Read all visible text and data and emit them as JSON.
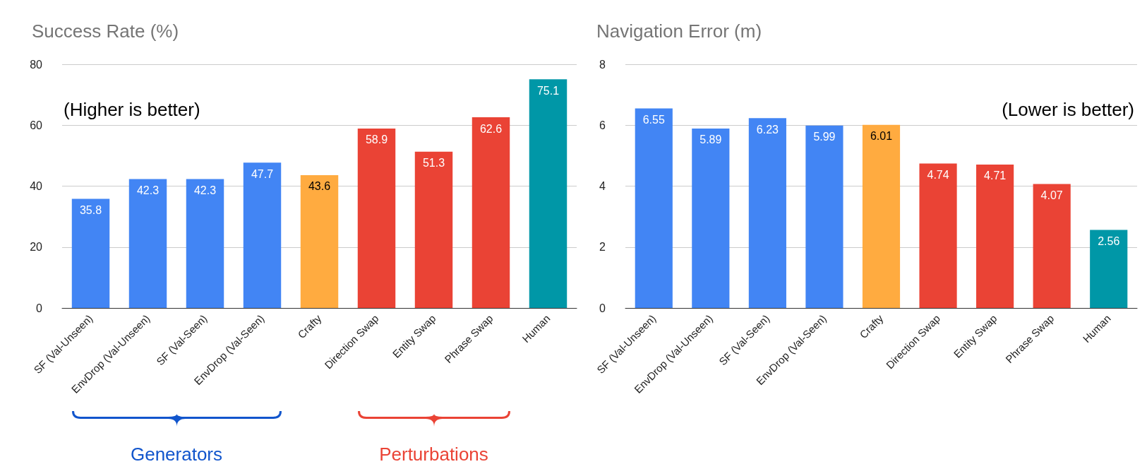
{
  "chart_data": [
    {
      "type": "bar",
      "title": "Success Rate (%)",
      "categories": [
        "SF (Val-Unseen)",
        "EnvDrop (Val-Unseen)",
        "SF (Val-Seen)",
        "EnvDrop (Val-Seen)",
        "Crafty",
        "Direction Swap",
        "Entity Swap",
        "Phrase Swap",
        "Human"
      ],
      "values": [
        35.8,
        42.3,
        42.3,
        47.7,
        43.6,
        58.9,
        51.3,
        62.6,
        75.1
      ],
      "colors": [
        "#4285f4",
        "#4285f4",
        "#4285f4",
        "#4285f4",
        "#ffab40",
        "#ea4335",
        "#ea4335",
        "#ea4335",
        "#0097a7"
      ],
      "ylim": [
        0,
        80
      ],
      "yticks": [
        0,
        20,
        40,
        60,
        80
      ],
      "grid": "y",
      "data_labels": true,
      "annotations": [
        "(Higher is better)",
        "Generators",
        "Perturbations"
      ]
    },
    {
      "type": "bar",
      "title": "Navigation Error (m)",
      "categories": [
        "SF (Val-Unseen)",
        "EnvDrop (Val-Unseen)",
        "SF (Val-Seen)",
        "EnvDrop (Val-Seen)",
        "Crafty",
        "Direction Swap",
        "Entity Swap",
        "Phrase Swap",
        "Human"
      ],
      "values": [
        6.55,
        5.89,
        6.23,
        5.99,
        6.01,
        4.74,
        4.71,
        4.07,
        2.56
      ],
      "colors": [
        "#4285f4",
        "#4285f4",
        "#4285f4",
        "#4285f4",
        "#ffab40",
        "#ea4335",
        "#ea4335",
        "#ea4335",
        "#0097a7"
      ],
      "ylim": [
        0,
        8
      ],
      "yticks": [
        0,
        2,
        4,
        6,
        8
      ],
      "grid": "y",
      "data_labels": true,
      "annotations": [
        "(Lower is better)"
      ]
    }
  ]
}
